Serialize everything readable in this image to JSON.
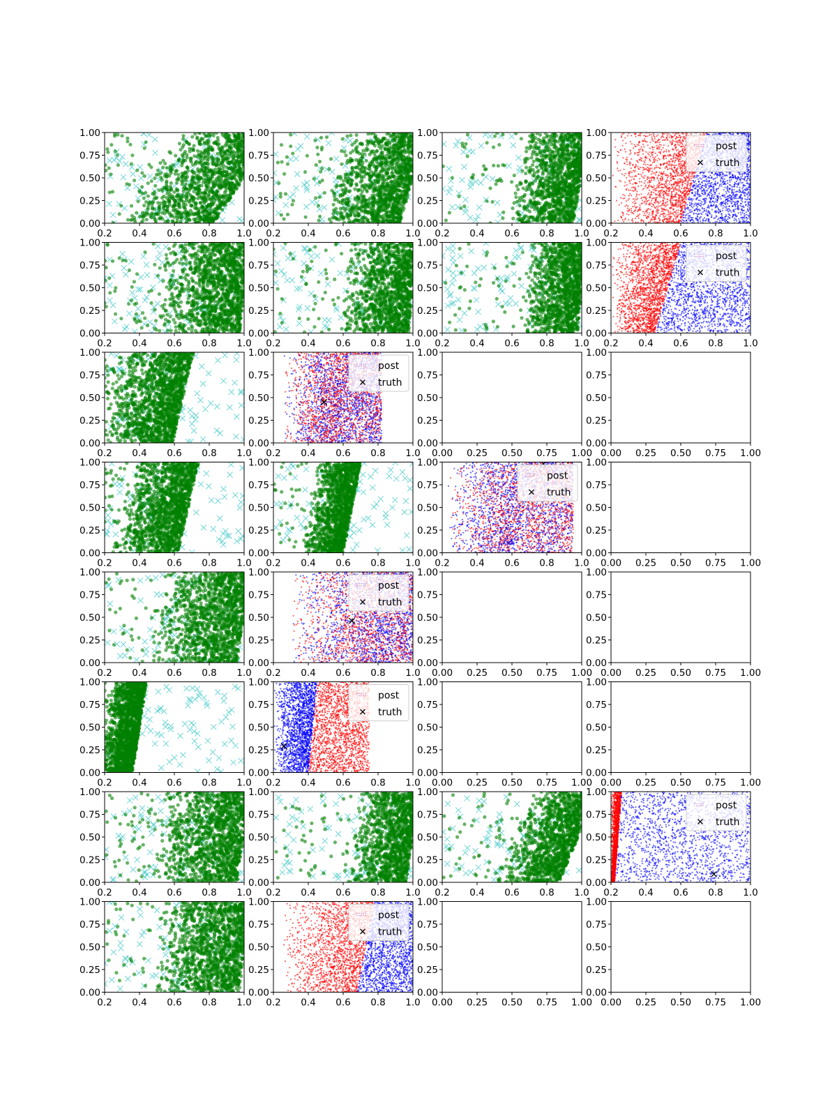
{
  "figure": {
    "rows": 8,
    "cols": 4
  },
  "colors": {
    "posterior": "#008000",
    "prior": "#40c8c8",
    "class_a": "#ff0000",
    "class_b": "#0000ff",
    "truth": "#000000",
    "axis": "#000000"
  },
  "legend": {
    "post_label": "post",
    "truth_label": "truth"
  },
  "chart_data": {
    "type": "scatter",
    "xlabel": "",
    "ylabel": "",
    "ylim": [
      0,
      1
    ],
    "yticks": [
      "0.00",
      "0.25",
      "0.50",
      "0.75",
      "1.00"
    ],
    "xticks_data": [
      "0.2",
      "0.4",
      "0.6",
      "0.8",
      "1.0"
    ],
    "xticks_empty": [
      "0.00",
      "0.25",
      "0.50",
      "0.75",
      "1.00"
    ],
    "grid": false,
    "panels": [
      [
        {
          "kind": "green",
          "xlim": [
            0.2,
            1.0
          ],
          "lo": 0.45,
          "hi": 1.0,
          "slope": 0.35,
          "n": 1400,
          "seed": 11
        },
        {
          "kind": "green",
          "xlim": [
            0.2,
            1.0
          ],
          "lo": 0.55,
          "hi": 1.0,
          "slope": 0.15,
          "n": 1400,
          "seed": 12
        },
        {
          "kind": "green",
          "xlim": [
            0.2,
            1.0
          ],
          "lo": 0.62,
          "hi": 1.0,
          "slope": 0.1,
          "n": 1300,
          "seed": 13
        },
        {
          "kind": "rb",
          "xlim": [
            0.2,
            1.0
          ],
          "split": 0.56,
          "slope": 0.12,
          "split_lo": 0.6,
          "split_hi": 0.75,
          "ra": 0.2,
          "rb": 1.0,
          "truth": null,
          "legend": "right",
          "n": 3400,
          "seed": 14
        }
      ],
      [
        {
          "kind": "green",
          "xlim": [
            0.2,
            1.0
          ],
          "lo": 0.5,
          "hi": 1.0,
          "slope": 0.05,
          "n": 1400,
          "seed": 21
        },
        {
          "kind": "green",
          "xlim": [
            0.2,
            1.0
          ],
          "lo": 0.6,
          "hi": 1.0,
          "slope": 0.05,
          "n": 1300,
          "seed": 22
        },
        {
          "kind": "green",
          "xlim": [
            0.2,
            1.0
          ],
          "lo": 0.68,
          "hi": 1.0,
          "slope": 0.05,
          "n": 1300,
          "seed": 23
        },
        {
          "kind": "rb",
          "xlim": [
            0.2,
            1.0
          ],
          "split": 0.44,
          "slope": 0.16,
          "split_lo": 0.45,
          "split_hi": 0.6,
          "ra": 0.2,
          "rb": 1.0,
          "truth": null,
          "legend": "right",
          "n": 3600,
          "seed": 24
        }
      ],
      [
        {
          "kind": "green",
          "xlim": [
            0.2,
            1.0
          ],
          "lo": 0.25,
          "hi": 0.65,
          "slope": 0.12,
          "n": 1500,
          "seed": 31
        },
        {
          "kind": "rb",
          "xlim": [
            0.2,
            1.0
          ],
          "split": 0.55,
          "slope": 0.08,
          "split_lo": 0.55,
          "split_hi": 0.65,
          "ra": 0.25,
          "rb": 0.82,
          "mixed": true,
          "truth": [
            0.49,
            0.45
          ],
          "legend": "right",
          "n": 3400,
          "seed": 32
        },
        {
          "kind": "empty",
          "xlim": [
            0.0,
            1.0
          ]
        },
        {
          "kind": "empty",
          "xlim": [
            0.0,
            1.0
          ]
        }
      ],
      [
        {
          "kind": "green",
          "xlim": [
            0.2,
            1.0
          ],
          "lo": 0.3,
          "hi": 0.68,
          "slope": 0.12,
          "n": 1500,
          "seed": 41
        },
        {
          "kind": "green",
          "xlim": [
            0.2,
            1.0
          ],
          "lo": 0.4,
          "hi": 0.65,
          "slope": 0.1,
          "n": 1400,
          "seed": 42
        },
        {
          "kind": "rb",
          "xlim": [
            0.2,
            1.0
          ],
          "split": 0.62,
          "slope": 0.1,
          "split_lo": 0.62,
          "split_hi": 0.72,
          "ra": 0.22,
          "rb": 0.95,
          "mixed": true,
          "swap": true,
          "truth": [
            0.78,
            0.98
          ],
          "legend": "right",
          "n": 3400,
          "seed": 43
        },
        {
          "kind": "empty",
          "xlim": [
            0.0,
            1.0
          ]
        }
      ],
      [
        {
          "kind": "green",
          "xlim": [
            0.2,
            1.0
          ],
          "lo": 0.5,
          "hi": 1.0,
          "slope": 0.08,
          "n": 1400,
          "seed": 51
        },
        {
          "kind": "rb",
          "xlim": [
            0.2,
            1.0
          ],
          "split": 0.75,
          "slope": 0.05,
          "split_lo": 0.75,
          "split_hi": 0.8,
          "ra": 0.3,
          "rb": 1.0,
          "mixed": true,
          "truth": [
            0.65,
            0.46
          ],
          "legend": "right",
          "n": 3200,
          "seed": 52
        },
        {
          "kind": "empty",
          "xlim": [
            0.0,
            1.0
          ]
        },
        {
          "kind": "empty",
          "xlim": [
            0.0,
            1.0
          ]
        }
      ],
      [
        {
          "kind": "green",
          "xlim": [
            0.2,
            1.0
          ],
          "lo": 0.2,
          "hi": 0.4,
          "slope": 0.08,
          "n": 1600,
          "seed": 61
        },
        {
          "kind": "rb",
          "xlim": [
            0.2,
            1.0
          ],
          "split": 0.4,
          "slope": 0.06,
          "split_lo": 0.4,
          "split_hi": 0.45,
          "ra": 0.2,
          "rb": 0.75,
          "swap": true,
          "truth": [
            0.26,
            0.29
          ],
          "legend": "right",
          "n": 3600,
          "seed": 62
        },
        {
          "kind": "empty",
          "xlim": [
            0.0,
            1.0
          ]
        },
        {
          "kind": "empty",
          "xlim": [
            0.0,
            1.0
          ]
        }
      ],
      [
        {
          "kind": "green",
          "xlim": [
            0.2,
            1.0
          ],
          "lo": 0.5,
          "hi": 1.0,
          "slope": 0.08,
          "n": 1400,
          "seed": 71
        },
        {
          "kind": "green",
          "xlim": [
            0.2,
            1.0
          ],
          "lo": 0.65,
          "hi": 1.0,
          "slope": 0.08,
          "n": 1300,
          "seed": 72
        },
        {
          "kind": "green",
          "xlim": [
            0.2,
            1.0
          ],
          "lo": 0.6,
          "hi": 0.98,
          "slope": 0.22,
          "n": 1400,
          "seed": 73
        },
        {
          "kind": "rb",
          "xlim": [
            0.2,
            1.0
          ],
          "split": 0.22,
          "slope": 0.05,
          "split_lo": 0.22,
          "split_hi": 0.26,
          "ra": 0.2,
          "rb": 1.0,
          "truth": [
            0.79,
            0.09
          ],
          "legend": "right",
          "n": 3200,
          "seed": 74
        }
      ],
      [
        {
          "kind": "green",
          "xlim": [
            0.2,
            1.0
          ],
          "lo": 0.5,
          "hi": 1.0,
          "slope": 0.05,
          "n": 1400,
          "seed": 81
        },
        {
          "kind": "rb",
          "xlim": [
            0.2,
            1.0
          ],
          "split": 0.7,
          "slope": 0.08,
          "split_lo": 0.68,
          "split_hi": 0.78,
          "ra": 0.25,
          "rb": 1.0,
          "truth": null,
          "legend": "right",
          "n": 3400,
          "seed": 82
        },
        {
          "kind": "empty",
          "xlim": [
            0.0,
            1.0
          ]
        },
        {
          "kind": "empty",
          "xlim": [
            0.0,
            1.0
          ]
        }
      ]
    ]
  }
}
